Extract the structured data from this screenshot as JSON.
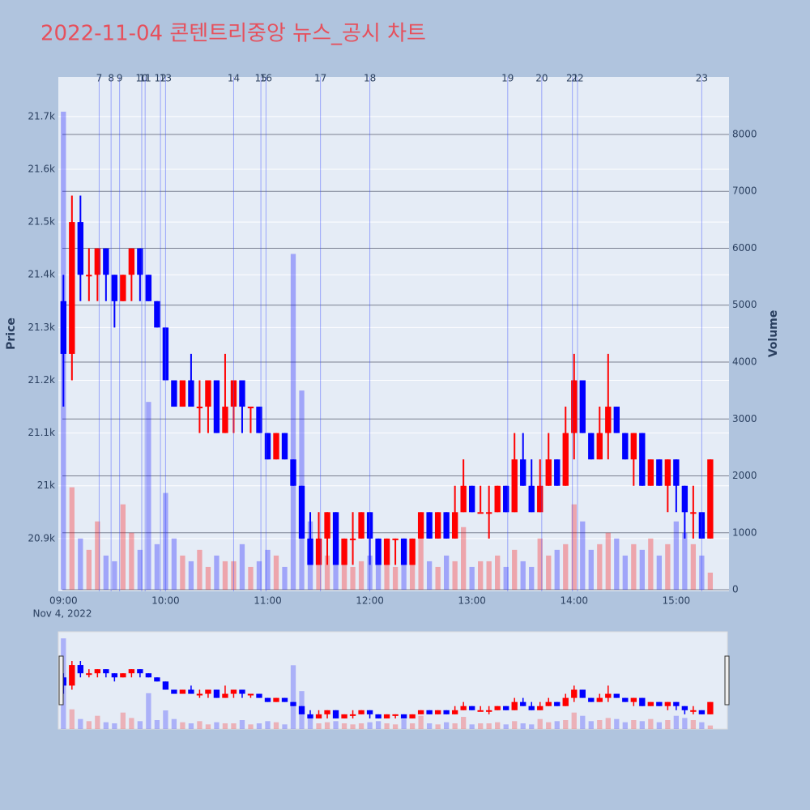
{
  "chart_data": {
    "type": "candlestick",
    "title": "2022-11-04 콘텐트리중앙 뉴스_공시 차트",
    "y_title": "Price",
    "y2_title": "Volume",
    "x_date_label": "Nov 4, 2022",
    "x": [
      "2022-11-04 09:00",
      "2022-11-04 09:05",
      "2022-11-04 09:10",
      "2022-11-04 09:15",
      "2022-11-04 09:20",
      "2022-11-04 09:25",
      "2022-11-04 09:30",
      "2022-11-04 09:35",
      "2022-11-04 09:40",
      "2022-11-04 09:45",
      "2022-11-04 09:50",
      "2022-11-04 09:55",
      "2022-11-04 10:00",
      "2022-11-04 10:05",
      "2022-11-04 10:10",
      "2022-11-04 10:15",
      "2022-11-04 10:20",
      "2022-11-04 10:25",
      "2022-11-04 10:30",
      "2022-11-04 10:35",
      "2022-11-04 10:40",
      "2022-11-04 10:45",
      "2022-11-04 10:50",
      "2022-11-04 10:55",
      "2022-11-04 11:00",
      "2022-11-04 11:05",
      "2022-11-04 11:10",
      "2022-11-04 11:15",
      "2022-11-04 11:20",
      "2022-11-04 11:25",
      "2022-11-04 11:30",
      "2022-11-04 11:35",
      "2022-11-04 11:40",
      "2022-11-04 11:45",
      "2022-11-04 11:50",
      "2022-11-04 11:55",
      "2022-11-04 12:00",
      "2022-11-04 12:05",
      "2022-11-04 12:10",
      "2022-11-04 12:15",
      "2022-11-04 12:20",
      "2022-11-04 12:25",
      "2022-11-04 12:30",
      "2022-11-04 12:35",
      "2022-11-04 12:40",
      "2022-11-04 12:45",
      "2022-11-04 12:50",
      "2022-11-04 12:55",
      "2022-11-04 13:00",
      "2022-11-04 13:05",
      "2022-11-04 13:10",
      "2022-11-04 13:15",
      "2022-11-04 13:20",
      "2022-11-04 13:25",
      "2022-11-04 13:30",
      "2022-11-04 13:35",
      "2022-11-04 13:40",
      "2022-11-04 13:45",
      "2022-11-04 13:50",
      "2022-11-04 13:55",
      "2022-11-04 14:00",
      "2022-11-04 14:05",
      "2022-11-04 14:10",
      "2022-11-04 14:15",
      "2022-11-04 14:20",
      "2022-11-04 14:25",
      "2022-11-04 14:30",
      "2022-11-04 14:35",
      "2022-11-04 14:40",
      "2022-11-04 14:45",
      "2022-11-04 14:50",
      "2022-11-04 14:55",
      "2022-11-04 15:00",
      "2022-11-04 15:05",
      "2022-11-04 15:10",
      "2022-11-04 15:15",
      "2022-11-04 15:20"
    ],
    "open": [
      21350,
      21250,
      21500,
      21400,
      21400,
      21450,
      21400,
      21350,
      21400,
      21450,
      21400,
      21350,
      21300,
      21200,
      21150,
      21200,
      21150,
      21150,
      21200,
      21100,
      21150,
      21200,
      21150,
      21150,
      21100,
      21050,
      21100,
      21050,
      21000,
      20900,
      20850,
      20900,
      20950,
      20850,
      20900,
      20900,
      20950,
      20900,
      20850,
      20900,
      20900,
      20850,
      20900,
      20950,
      20900,
      20950,
      20900,
      20950,
      21000,
      20950,
      20950,
      20950,
      21000,
      20950,
      21050,
      21000,
      20950,
      21000,
      21050,
      21000,
      21100,
      21200,
      21100,
      21050,
      21100,
      21150,
      21100,
      21050,
      21100,
      21000,
      21050,
      21000,
      21050,
      21000,
      20950,
      20950,
      20900
    ],
    "high": [
      21400,
      21550,
      21550,
      21450,
      21450,
      21450,
      21400,
      21400,
      21450,
      21450,
      21400,
      21350,
      21300,
      21200,
      21200,
      21250,
      21200,
      21200,
      21200,
      21250,
      21200,
      21200,
      21150,
      21150,
      21100,
      21100,
      21100,
      21050,
      21000,
      20950,
      20950,
      20950,
      20950,
      20900,
      20950,
      20950,
      20950,
      20900,
      20900,
      20900,
      20900,
      20900,
      20950,
      20950,
      20950,
      20950,
      21000,
      21050,
      21000,
      21000,
      21000,
      21000,
      21000,
      21100,
      21100,
      21050,
      21050,
      21100,
      21050,
      21150,
      21250,
      21200,
      21100,
      21150,
      21250,
      21150,
      21100,
      21100,
      21100,
      21050,
      21050,
      21050,
      21050,
      21000,
      21000,
      20950,
      21050
    ],
    "low": [
      21150,
      21200,
      21350,
      21350,
      21350,
      21350,
      21300,
      21350,
      21350,
      21350,
      21350,
      21300,
      21200,
      21150,
      21150,
      21150,
      21100,
      21100,
      21100,
      21100,
      21100,
      21100,
      21100,
      21100,
      21050,
      21050,
      21050,
      21000,
      20900,
      20850,
      20850,
      20850,
      20850,
      20850,
      20850,
      20900,
      20850,
      20850,
      20850,
      20850,
      20850,
      20850,
      20900,
      20900,
      20900,
      20900,
      20900,
      20950,
      20950,
      20950,
      20900,
      20950,
      20950,
      20950,
      21000,
      20950,
      20950,
      21000,
      21000,
      21000,
      21050,
      21100,
      21050,
      21050,
      21050,
      21100,
      21050,
      21000,
      21000,
      21000,
      21000,
      20950,
      20950,
      20900,
      20900,
      20900,
      20900
    ],
    "close": [
      21250,
      21500,
      21400,
      21400,
      21450,
      21400,
      21350,
      21400,
      21450,
      21400,
      21350,
      21300,
      21200,
      21150,
      21200,
      21150,
      21150,
      21200,
      21100,
      21150,
      21200,
      21150,
      21150,
      21100,
      21050,
      21100,
      21050,
      21000,
      20900,
      20850,
      20900,
      20950,
      20850,
      20900,
      20900,
      20950,
      20900,
      20850,
      20900,
      20900,
      20850,
      20900,
      20950,
      20900,
      20950,
      20900,
      20950,
      21000,
      20950,
      20950,
      20950,
      21000,
      20950,
      21050,
      21000,
      20950,
      21000,
      21050,
      21000,
      21100,
      21200,
      21100,
      21050,
      21100,
      21150,
      21100,
      21050,
      21100,
      21000,
      21050,
      21000,
      21050,
      21000,
      20950,
      20950,
      20900,
      21050
    ],
    "volume": [
      8400,
      1800,
      900,
      700,
      1200,
      600,
      500,
      1500,
      1000,
      700,
      3300,
      800,
      1700,
      900,
      600,
      500,
      700,
      400,
      600,
      500,
      500,
      800,
      400,
      500,
      700,
      600,
      400,
      5900,
      3500,
      1200,
      500,
      600,
      700,
      500,
      400,
      500,
      600,
      700,
      500,
      400,
      900,
      500,
      1200,
      500,
      400,
      600,
      500,
      1100,
      400,
      500,
      500,
      600,
      400,
      700,
      500,
      400,
      900,
      600,
      700,
      800,
      1500,
      1200,
      700,
      800,
      1000,
      900,
      600,
      800,
      700,
      900,
      600,
      800,
      1200,
      1000,
      800,
      600,
      300
    ],
    "increasing_color": "#ff0000",
    "decreasing_color": "#0000ff",
    "annotations": [
      {
        "label": "7",
        "x": "2022-11-04 09:21"
      },
      {
        "label": "8",
        "x": "2022-11-04 09:28"
      },
      {
        "label": "9",
        "x": "2022-11-04 09:33"
      },
      {
        "label": "10",
        "x": "2022-11-04 09:46"
      },
      {
        "label": "11",
        "x": "2022-11-04 09:48"
      },
      {
        "label": "12",
        "x": "2022-11-04 09:57"
      },
      {
        "label": "13",
        "x": "2022-11-04 10:00"
      },
      {
        "label": "14",
        "x": "2022-11-04 10:40"
      },
      {
        "label": "15",
        "x": "2022-11-04 10:56"
      },
      {
        "label": "16",
        "x": "2022-11-04 10:59"
      },
      {
        "label": "17",
        "x": "2022-11-04 11:31"
      },
      {
        "label": "18",
        "x": "2022-11-04 12:00"
      },
      {
        "label": "19",
        "x": "2022-11-04 13:21"
      },
      {
        "label": "20",
        "x": "2022-11-04 13:41"
      },
      {
        "label": "21",
        "x": "2022-11-04 13:59"
      },
      {
        "label": "22",
        "x": "2022-11-04 14:02"
      },
      {
        "label": "23",
        "x": "2022-11-04 15:15"
      }
    ],
    "xlim": [
      "2022-11-04 08:57",
      "2022-11-04 15:31"
    ],
    "xticks": [
      {
        "value": "2022-11-04 09:00",
        "label": "09:00"
      },
      {
        "value": "2022-11-04 10:00",
        "label": "10:00"
      },
      {
        "value": "2022-11-04 11:00",
        "label": "11:00"
      },
      {
        "value": "2022-11-04 12:00",
        "label": "12:00"
      },
      {
        "value": "2022-11-04 13:00",
        "label": "13:00"
      },
      {
        "value": "2022-11-04 14:00",
        "label": "14:00"
      },
      {
        "value": "2022-11-04 15:00",
        "label": "15:00"
      }
    ],
    "ylim": [
      20800,
      21775
    ],
    "yticks": [
      {
        "value": 20900,
        "label": "20.9k"
      },
      {
        "value": 21000,
        "label": "21k"
      },
      {
        "value": 21100,
        "label": "21.1k"
      },
      {
        "value": 21200,
        "label": "21.2k"
      },
      {
        "value": 21300,
        "label": "21.3k"
      },
      {
        "value": 21400,
        "label": "21.4k"
      },
      {
        "value": 21500,
        "label": "21.5k"
      },
      {
        "value": 21600,
        "label": "21.6k"
      },
      {
        "value": 21700,
        "label": "21.7k"
      }
    ],
    "y2lim": [
      -28,
      9010
    ],
    "y2ticks": [
      0,
      1000,
      2000,
      3000,
      4000,
      5000,
      6000,
      7000,
      8000
    ],
    "grid": true
  }
}
